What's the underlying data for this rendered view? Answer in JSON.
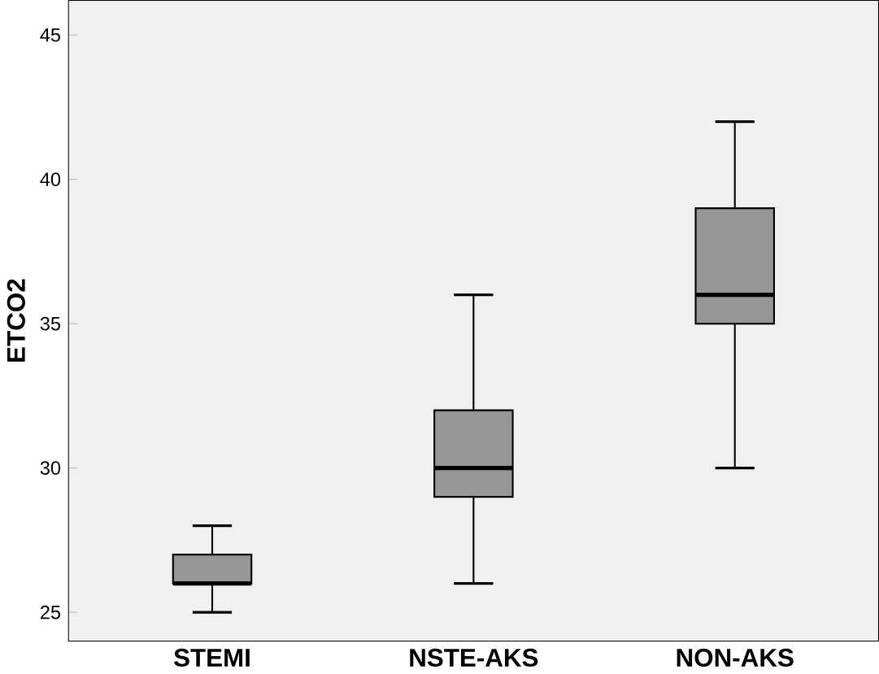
{
  "chart_data": {
    "type": "box",
    "ylabel": "ETCO2",
    "categories": [
      "STEMI",
      "NSTE-AKS",
      "NON-AKS"
    ],
    "boxes": [
      {
        "low": 25,
        "q1": 26,
        "median": 26,
        "q3": 27,
        "high": 28
      },
      {
        "low": 26,
        "q1": 29,
        "median": 30,
        "q3": 32,
        "high": 36
      },
      {
        "low": 30,
        "q1": 35,
        "median": 36,
        "q3": 39,
        "high": 42
      }
    ],
    "color": "#969696",
    "ylim": [
      24,
      46.2
    ],
    "yticks": [
      25,
      30,
      35,
      40,
      45
    ]
  }
}
